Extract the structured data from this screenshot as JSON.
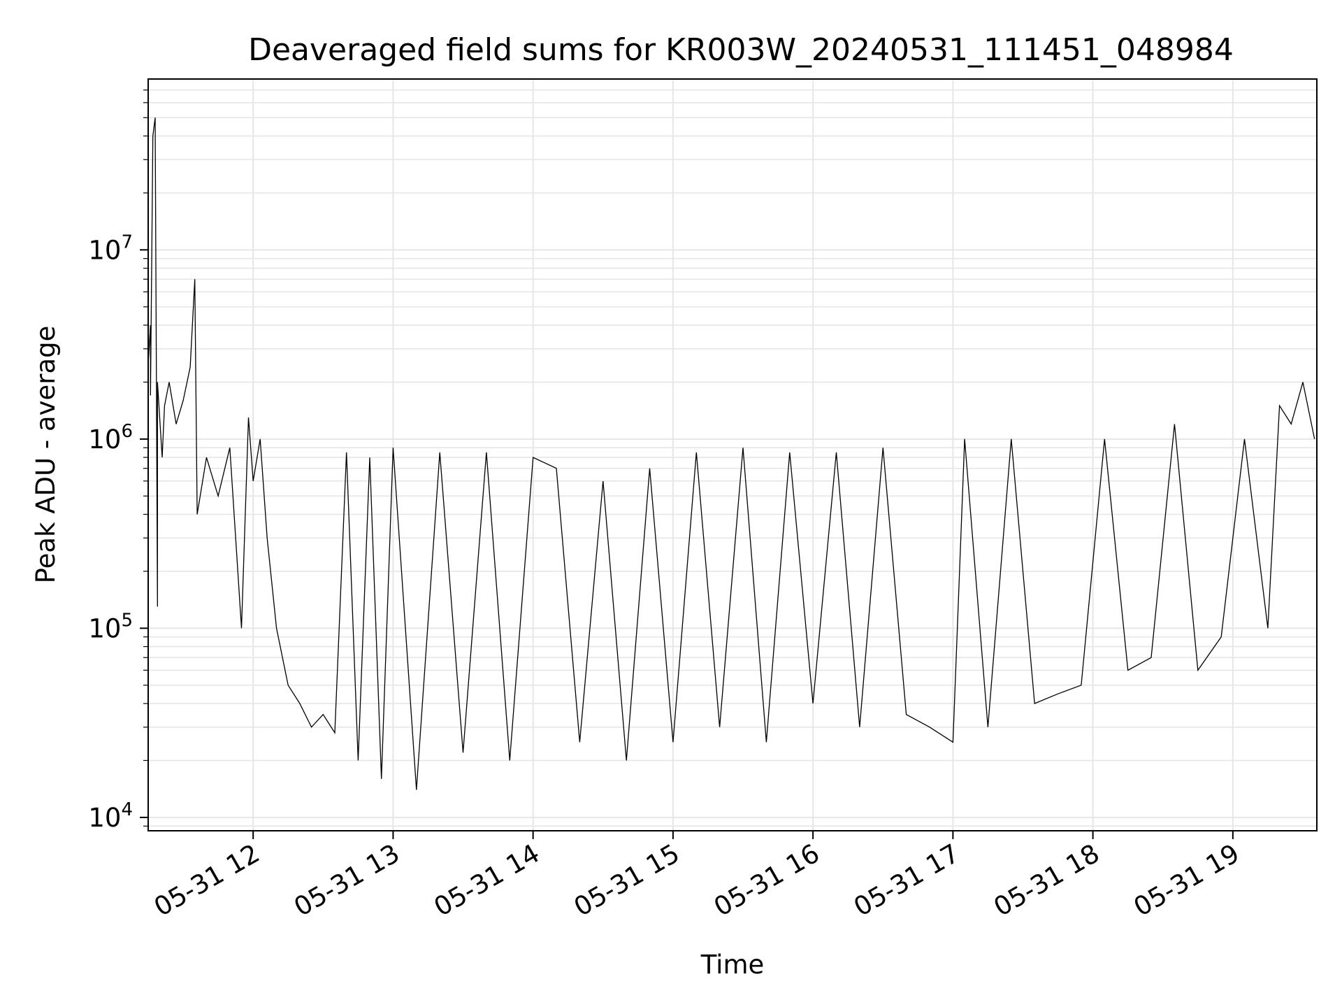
{
  "chart_data": {
    "type": "line",
    "title": "Deaveraged field sums for KR003W_20240531_111451_048984",
    "xlabel": "Time",
    "ylabel": "Peak ADU - average",
    "yscale": "log",
    "ylim": [
      8500,
      80000000
    ],
    "xlim": [
      "05-31 11:15",
      "05-31 19:36"
    ],
    "grid": true,
    "line_color": "#000000",
    "grid_color": "#e6e6e6",
    "x_ticks": [
      "05-31 12",
      "05-31 13",
      "05-31 14",
      "05-31 15",
      "05-31 16",
      "05-31 17",
      "05-31 18",
      "05-31 19"
    ],
    "y_ticks": [
      {
        "base": "10",
        "exp": "4"
      },
      {
        "base": "10",
        "exp": "5"
      },
      {
        "base": "10",
        "exp": "6"
      },
      {
        "base": "10",
        "exp": "7"
      }
    ],
    "series": [
      {
        "points": [
          [
            "05-31 11:15",
            1000000
          ],
          [
            "05-31 11:15",
            2500000
          ],
          [
            "05-31 11:16",
            4000000
          ],
          [
            "05-31 11:16",
            1700000
          ],
          [
            "05-31 11:17",
            40000000
          ],
          [
            "05-31 11:18",
            50000000
          ],
          [
            "05-31 11:19",
            130000
          ],
          [
            "05-31 11:19",
            2000000
          ],
          [
            "05-31 11:21",
            800000
          ],
          [
            "05-31 11:22",
            1500000
          ],
          [
            "05-31 11:24",
            2000000
          ],
          [
            "05-31 11:27",
            1200000
          ],
          [
            "05-31 11:30",
            1600000
          ],
          [
            "05-31 11:33",
            2400000
          ],
          [
            "05-31 11:35",
            7000000
          ],
          [
            "05-31 11:36",
            400000
          ],
          [
            "05-31 11:40",
            800000
          ],
          [
            "05-31 11:45",
            500000
          ],
          [
            "05-31 11:50",
            900000
          ],
          [
            "05-31 11:55",
            100000
          ],
          [
            "05-31 11:58",
            1300000
          ],
          [
            "05-31 12:00",
            600000
          ],
          [
            "05-31 12:03",
            1000000
          ],
          [
            "05-31 12:06",
            300000
          ],
          [
            "05-31 12:10",
            100000
          ],
          [
            "05-31 12:15",
            50000
          ],
          [
            "05-31 12:20",
            40000
          ],
          [
            "05-31 12:25",
            30000
          ],
          [
            "05-31 12:30",
            35000
          ],
          [
            "05-31 12:35",
            28000
          ],
          [
            "05-31 12:40",
            850000
          ],
          [
            "05-31 12:45",
            20000
          ],
          [
            "05-31 12:50",
            800000
          ],
          [
            "05-31 12:55",
            16000
          ],
          [
            "05-31 13:00",
            900000
          ],
          [
            "05-31 13:10",
            14000
          ],
          [
            "05-31 13:20",
            850000
          ],
          [
            "05-31 13:30",
            22000
          ],
          [
            "05-31 13:40",
            850000
          ],
          [
            "05-31 13:50",
            20000
          ],
          [
            "05-31 14:00",
            800000
          ],
          [
            "05-31 14:10",
            700000
          ],
          [
            "05-31 14:20",
            25000
          ],
          [
            "05-31 14:30",
            600000
          ],
          [
            "05-31 14:40",
            20000
          ],
          [
            "05-31 14:50",
            700000
          ],
          [
            "05-31 15:00",
            25000
          ],
          [
            "05-31 15:10",
            850000
          ],
          [
            "05-31 15:20",
            30000
          ],
          [
            "05-31 15:30",
            900000
          ],
          [
            "05-31 15:40",
            25000
          ],
          [
            "05-31 15:50",
            850000
          ],
          [
            "05-31 16:00",
            40000
          ],
          [
            "05-31 16:10",
            850000
          ],
          [
            "05-31 16:20",
            30000
          ],
          [
            "05-31 16:30",
            900000
          ],
          [
            "05-31 16:40",
            35000
          ],
          [
            "05-31 16:50",
            30000
          ],
          [
            "05-31 17:00",
            25000
          ],
          [
            "05-31 17:05",
            1000000
          ],
          [
            "05-31 17:15",
            30000
          ],
          [
            "05-31 17:25",
            1000000
          ],
          [
            "05-31 17:35",
            40000
          ],
          [
            "05-31 17:45",
            45000
          ],
          [
            "05-31 17:55",
            50000
          ],
          [
            "05-31 18:05",
            1000000
          ],
          [
            "05-31 18:15",
            60000
          ],
          [
            "05-31 18:25",
            70000
          ],
          [
            "05-31 18:35",
            1200000
          ],
          [
            "05-31 18:45",
            60000
          ],
          [
            "05-31 18:55",
            90000
          ],
          [
            "05-31 19:05",
            1000000
          ],
          [
            "05-31 19:15",
            100000
          ],
          [
            "05-31 19:20",
            1500000
          ],
          [
            "05-31 19:25",
            1200000
          ],
          [
            "05-31 19:30",
            2000000
          ],
          [
            "05-31 19:35",
            1000000
          ]
        ]
      }
    ]
  }
}
